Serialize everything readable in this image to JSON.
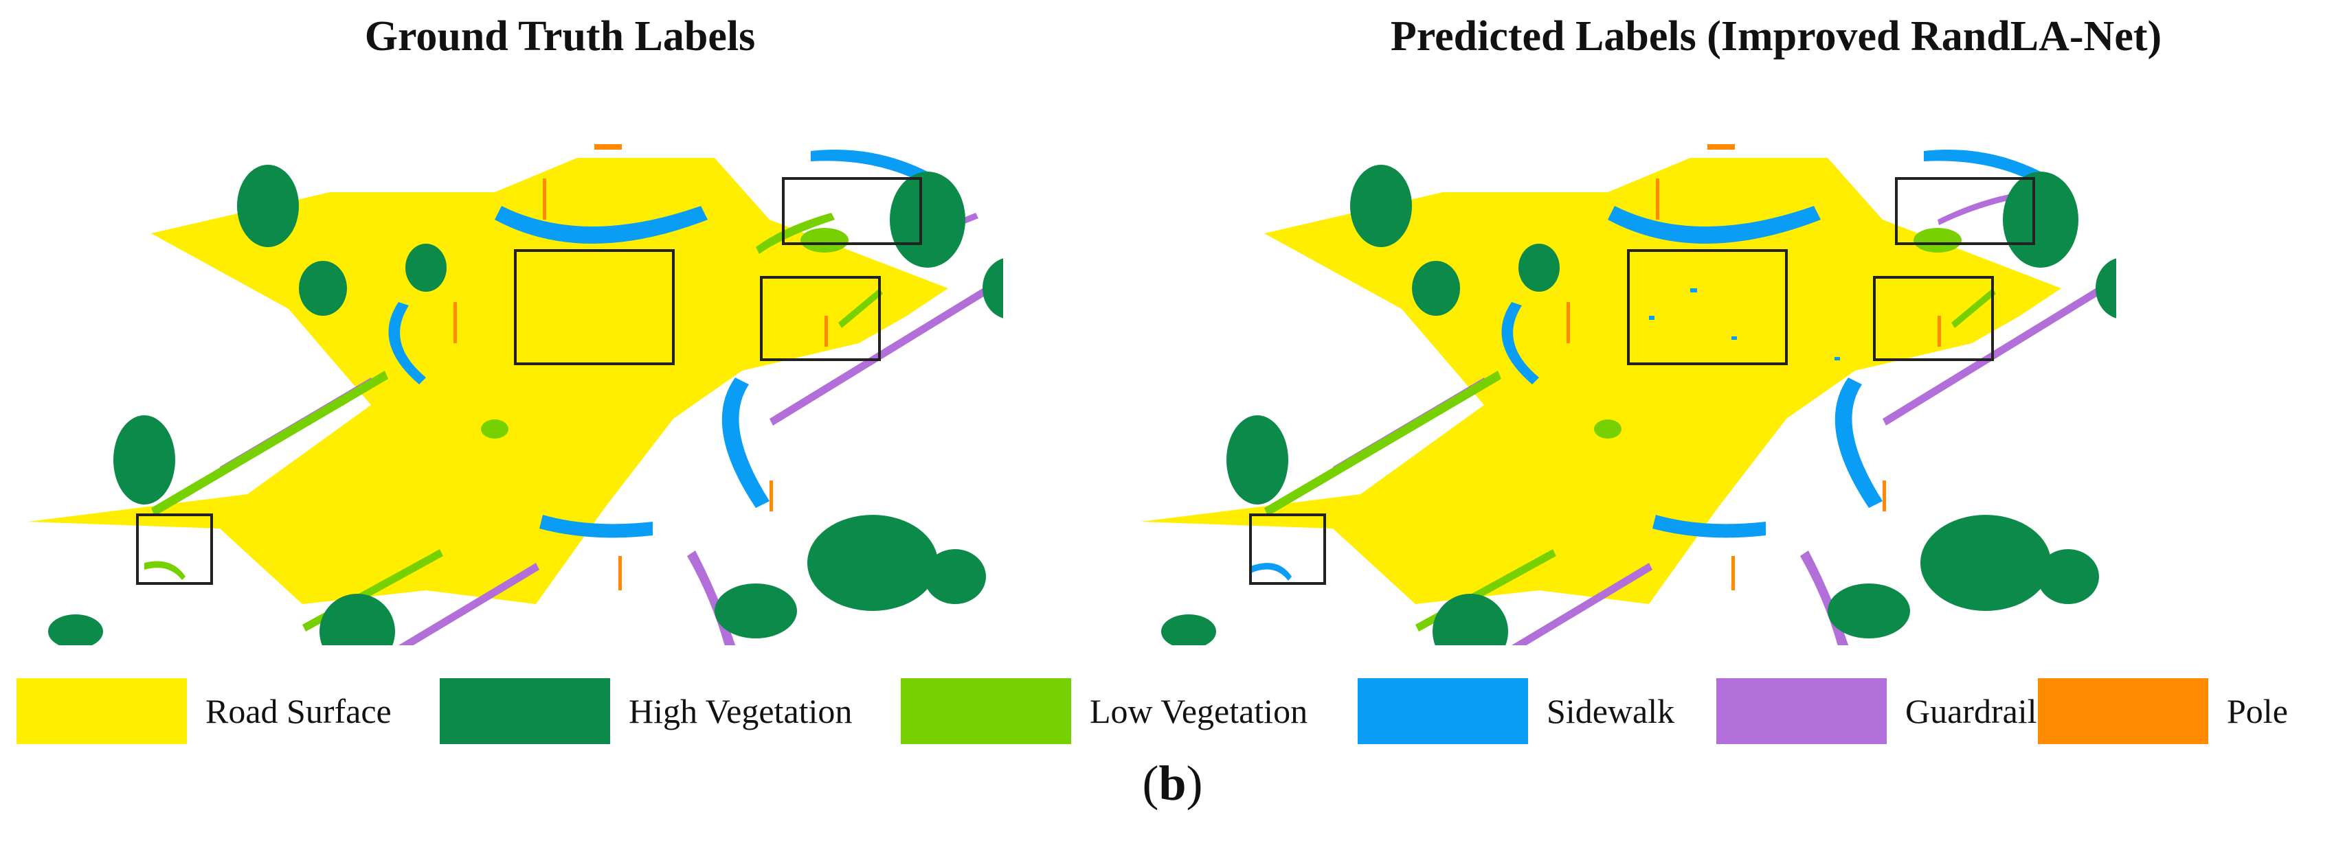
{
  "panels": {
    "left_title": "Ground Truth Labels",
    "right_title": "Predicted Labels (Improved RandLA-Net)"
  },
  "legend": [
    {
      "label": "Road Surface",
      "color": "#ffee00"
    },
    {
      "label": "High Vegetation",
      "color": "#0c8a4a"
    },
    {
      "label": "Low Vegetation",
      "color": "#77d100"
    },
    {
      "label": "Sidewalk",
      "color": "#0a9df5"
    },
    {
      "label": "Guardrail",
      "color": "#b36fd9"
    },
    {
      "label": "Pole",
      "color": "#ff8a00"
    }
  ],
  "caption": {
    "open": "(",
    "letter": "b",
    "close": ")"
  }
}
